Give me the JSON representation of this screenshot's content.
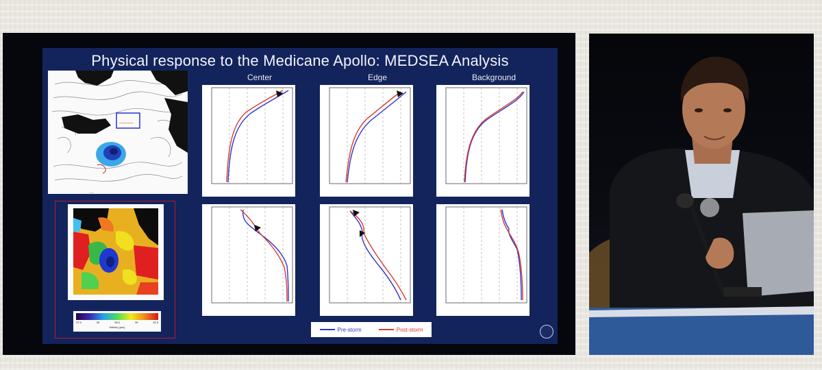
{
  "slide": {
    "title": "Physical response to the Medicane Apollo: MEDSEA Analysis",
    "columns": [
      "Center",
      "Edge",
      "Background"
    ],
    "legend": [
      {
        "label": "Pre-storm",
        "color": "#2f34c8"
      },
      {
        "label": "Post-storm",
        "color": "#d8382c"
      }
    ],
    "colorbar_ticks": [
      "37.5",
      "38",
      "38.5",
      "39",
      "39.5"
    ],
    "colorbar_label": "Salinity (psu)"
  },
  "colors": {
    "slide_bg": "#13245c",
    "pre_storm": "#2f34c8",
    "post_storm": "#d8382c",
    "highlight_frame": "#b41c2c"
  },
  "icons": [
    "institution-logo-icon"
  ]
}
